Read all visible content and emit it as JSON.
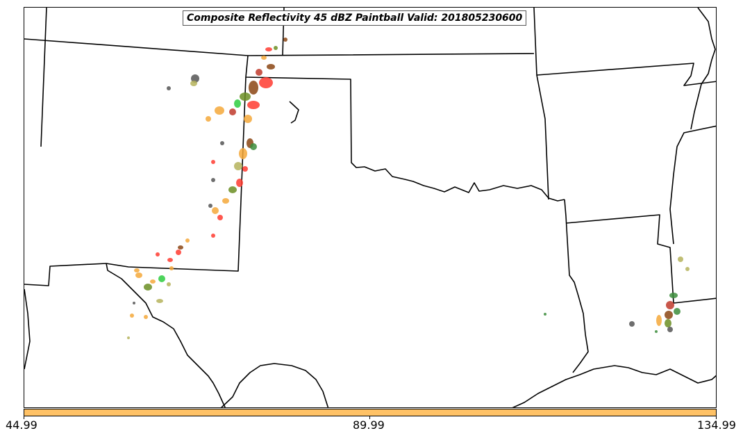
{
  "map": {
    "title": "Composite Reflectivity 45 dBZ Paintball Valid: 201805230600",
    "colorbar_color": "#ffc266",
    "colorbar_ticks": [
      "44.99",
      "89.99",
      "134.99"
    ],
    "member_colors": [
      "#ff3b30",
      "#f4a83a",
      "#6b8e23",
      "#8b4513",
      "#555555",
      "#2ecc40",
      "#a0522d",
      "#b5b35c",
      "#3c8d3c",
      "#c0392b"
    ]
  }
}
